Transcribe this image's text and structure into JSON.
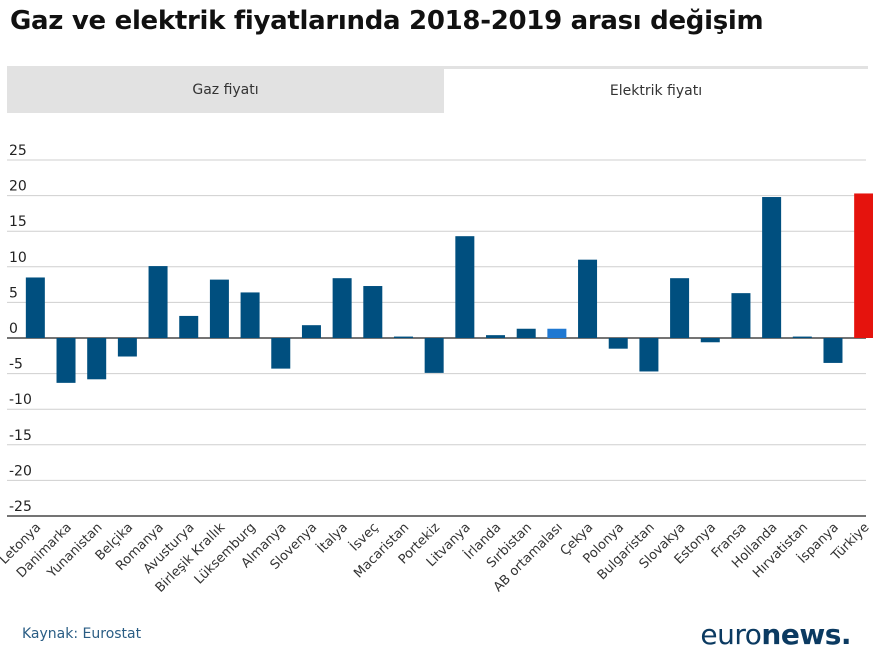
{
  "title": "Gaz ve elektrik fiyatlarında 2018-2019 arası değişim",
  "tabs": [
    {
      "label": "Gaz fiyatı",
      "active": false
    },
    {
      "label": "Elektrik fiyatı",
      "active": true
    }
  ],
  "source": "Kaynak: Eurostat",
  "logo": {
    "part1": "euro",
    "part2": "news."
  },
  "colors": {
    "default": "#004f7f",
    "average": "#1f78d1",
    "highlight": "#e5130d"
  },
  "chart_data": {
    "type": "bar",
    "categories": [
      "Letonya",
      "Danimarka",
      "Yunanistan",
      "Belçika",
      "Romanya",
      "Avusturya",
      "Birleşik Krallık",
      "Lüksemburg",
      "Almanya",
      "Slovenya",
      "İtalya",
      "İsveç",
      "Macaristan",
      "Portekiz",
      "Litvanya",
      "İrlanda",
      "Sırbistan",
      "AB ortamalası",
      "Çekya",
      "Polonya",
      "Bulgaristan",
      "Slovakya",
      "Estonya",
      "Fransa",
      "Hollanda",
      "Hırvatistan",
      "İspanya",
      "Türkiye"
    ],
    "values": [
      8.5,
      -6.3,
      -5.8,
      -2.6,
      10.1,
      3.1,
      8.2,
      6.4,
      -4.3,
      1.8,
      8.4,
      7.3,
      0.2,
      -4.9,
      14.3,
      0.4,
      1.3,
      1.3,
      11.0,
      -1.5,
      -4.7,
      8.4,
      -0.6,
      6.3,
      19.8,
      0.2,
      -3.5,
      20.3
    ],
    "ylim": [
      -25,
      25
    ],
    "yticks": [
      "25",
      "20",
      "15",
      "10",
      "5",
      "0",
      "-5",
      "-10",
      "-15",
      "-20",
      "-25"
    ],
    "grid": true,
    "highlight_index": 27,
    "average_index": 17
  }
}
